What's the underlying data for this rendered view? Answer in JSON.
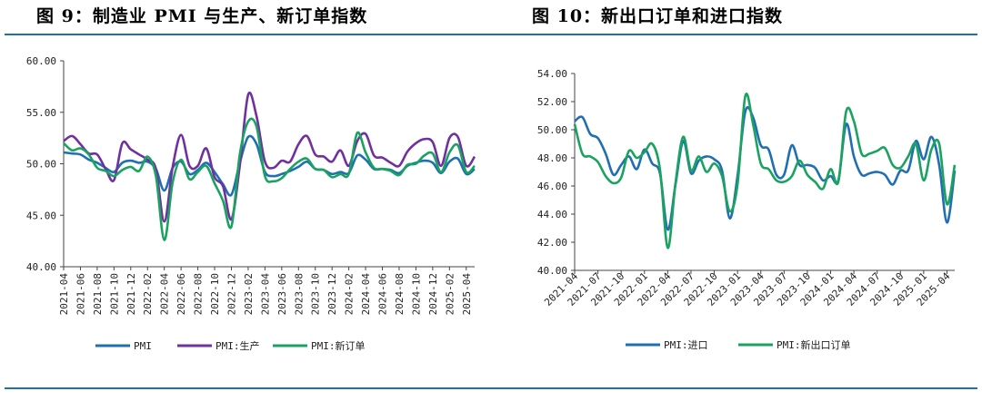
{
  "figures": [
    {
      "title": "图 9：制造业 PMI 与生产、新订单指数"
    },
    {
      "title": "图 10：新出口订单和进口指数"
    }
  ],
  "chart_data": [
    {
      "type": "line",
      "title": "图 9：制造业 PMI 与生产、新订单指数",
      "ylim": [
        40,
        60
      ],
      "yticks": [
        "40.00",
        "45.00",
        "50.00",
        "55.00",
        "60.00"
      ],
      "x": [
        "2021-04",
        "2021-05",
        "2021-06",
        "2021-07",
        "2021-08",
        "2021-09",
        "2021-10",
        "2021-11",
        "2021-12",
        "2022-01",
        "2022-02",
        "2022-03",
        "2022-04",
        "2022-05",
        "2022-06",
        "2022-07",
        "2022-08",
        "2022-09",
        "2022-10",
        "2022-11",
        "2022-12",
        "2023-01",
        "2023-02",
        "2023-03",
        "2023-04",
        "2023-05",
        "2023-06",
        "2023-07",
        "2023-08",
        "2023-09",
        "2023-10",
        "2023-11",
        "2023-12",
        "2024-01",
        "2024-02",
        "2024-03",
        "2024-04",
        "2024-05",
        "2024-06",
        "2024-07",
        "2024-08",
        "2024-09",
        "2024-10",
        "2024-11",
        "2024-12",
        "2025-01",
        "2025-02",
        "2025-03",
        "2025-04",
        "2025-05"
      ],
      "xtick_labels": [
        "2021-04",
        "2021-06",
        "2021-08",
        "2021-10",
        "2021-12",
        "2022-02",
        "2022-04",
        "2022-06",
        "2022-08",
        "2022-10",
        "2022-12",
        "2023-02",
        "2023-04",
        "2023-06",
        "2023-08",
        "2023-10",
        "2023-12",
        "2024-02",
        "2024-04",
        "2024-06",
        "2024-08",
        "2024-10",
        "2024-12",
        "2025-02",
        "2025-04"
      ],
      "legend_position": "bottom",
      "series": [
        {
          "name": "PMI",
          "color": "#1f6fb2",
          "values": [
            51.1,
            51.0,
            50.9,
            50.4,
            50.1,
            49.6,
            49.2,
            50.1,
            50.3,
            50.1,
            50.2,
            49.5,
            47.4,
            49.6,
            50.2,
            49.0,
            49.4,
            50.1,
            49.2,
            48.0,
            47.0,
            50.1,
            52.6,
            51.9,
            49.2,
            48.8,
            49.0,
            49.3,
            49.7,
            50.2,
            49.5,
            49.4,
            49.0,
            49.2,
            49.1,
            50.8,
            50.4,
            49.5,
            49.5,
            49.4,
            49.1,
            49.8,
            50.1,
            50.3,
            50.1,
            49.1,
            50.2,
            50.5,
            49.0,
            49.5
          ]
        },
        {
          "name": "PMI:生产",
          "color": "#7030a0",
          "values": [
            52.2,
            52.7,
            51.9,
            51.0,
            50.9,
            49.5,
            48.4,
            52.0,
            51.4,
            50.9,
            50.4,
            49.5,
            44.4,
            49.7,
            52.8,
            49.8,
            49.8,
            51.5,
            48.7,
            47.8,
            44.6,
            49.8,
            56.7,
            54.6,
            50.2,
            49.6,
            50.3,
            50.2,
            51.9,
            52.7,
            50.9,
            50.7,
            50.2,
            51.3,
            49.8,
            52.2,
            52.9,
            50.8,
            50.6,
            50.1,
            49.8,
            51.2,
            52.0,
            52.4,
            52.1,
            49.8,
            52.5,
            52.6,
            49.8,
            50.7
          ]
        },
        {
          "name": "PMI:新订单",
          "color": "#1aa260",
          "values": [
            52.0,
            51.3,
            51.5,
            50.9,
            49.6,
            49.3,
            48.8,
            49.4,
            49.7,
            49.3,
            50.7,
            48.8,
            42.6,
            48.2,
            50.4,
            48.5,
            49.2,
            49.8,
            48.1,
            46.4,
            43.9,
            50.9,
            54.1,
            53.6,
            48.8,
            48.3,
            48.6,
            49.5,
            50.2,
            50.5,
            49.5,
            49.4,
            48.7,
            49.0,
            49.0,
            53.0,
            51.1,
            49.6,
            49.5,
            49.3,
            48.9,
            49.9,
            50.0,
            50.8,
            51.0,
            49.2,
            51.1,
            51.8,
            49.2,
            49.8
          ]
        }
      ]
    },
    {
      "type": "line",
      "title": "图 10：新出口订单和进口指数",
      "ylim": [
        40,
        54
      ],
      "yticks": [
        "40.00",
        "42.00",
        "44.00",
        "46.00",
        "48.00",
        "50.00",
        "52.00",
        "54.00"
      ],
      "x": [
        "2021-04",
        "2021-05",
        "2021-06",
        "2021-07",
        "2021-08",
        "2021-09",
        "2021-10",
        "2021-11",
        "2021-12",
        "2022-01",
        "2022-02",
        "2022-03",
        "2022-04",
        "2022-05",
        "2022-06",
        "2022-07",
        "2022-08",
        "2022-09",
        "2022-10",
        "2022-11",
        "2022-12",
        "2023-01",
        "2023-02",
        "2023-03",
        "2023-04",
        "2023-05",
        "2023-06",
        "2023-07",
        "2023-08",
        "2023-09",
        "2023-10",
        "2023-11",
        "2023-12",
        "2024-01",
        "2024-02",
        "2024-03",
        "2024-04",
        "2024-05",
        "2024-06",
        "2024-07",
        "2024-08",
        "2024-09",
        "2024-10",
        "2024-11",
        "2024-12",
        "2025-01",
        "2025-02",
        "2025-03",
        "2025-04",
        "2025-05"
      ],
      "xtick_labels": [
        "2021-04",
        "2021-07",
        "2021-10",
        "2022-01",
        "2022-04",
        "2022-07",
        "2022-10",
        "2023-01",
        "2023-04",
        "2023-07",
        "2023-10",
        "2024-01",
        "2024-04",
        "2024-07",
        "2024-10",
        "2025-01",
        "2025-04"
      ],
      "legend_position": "bottom",
      "series": [
        {
          "name": "PMI:进口",
          "color": "#1f6fb2",
          "values": [
            50.6,
            50.9,
            49.7,
            49.4,
            48.3,
            46.8,
            47.5,
            48.1,
            47.2,
            48.6,
            47.6,
            46.9,
            42.9,
            46.1,
            49.2,
            46.9,
            47.8,
            48.1,
            47.9,
            47.1,
            43.7,
            46.7,
            51.3,
            50.9,
            48.9,
            48.6,
            46.8,
            46.8,
            48.9,
            47.5,
            47.5,
            47.3,
            46.4,
            46.7,
            46.4,
            50.4,
            48.1,
            46.8,
            46.9,
            47.0,
            46.8,
            46.1,
            47.1,
            47.1,
            49.2,
            47.9,
            49.5,
            47.5,
            43.4,
            47.1
          ]
        },
        {
          "name": "PMI:新出口订单",
          "color": "#1aa260",
          "values": [
            50.4,
            48.3,
            48.1,
            47.7,
            46.7,
            46.2,
            46.6,
            48.5,
            48.0,
            48.4,
            49.0,
            47.2,
            41.6,
            46.2,
            49.5,
            47.1,
            48.1,
            47.0,
            47.6,
            46.7,
            44.2,
            46.1,
            52.4,
            50.4,
            47.6,
            47.2,
            46.4,
            46.3,
            46.7,
            47.8,
            46.8,
            46.3,
            45.8,
            47.2,
            46.3,
            51.3,
            50.6,
            48.3,
            48.3,
            48.5,
            48.7,
            47.5,
            47.3,
            48.1,
            49.0,
            46.4,
            48.6,
            49.0,
            44.7,
            47.5
          ]
        }
      ]
    }
  ]
}
